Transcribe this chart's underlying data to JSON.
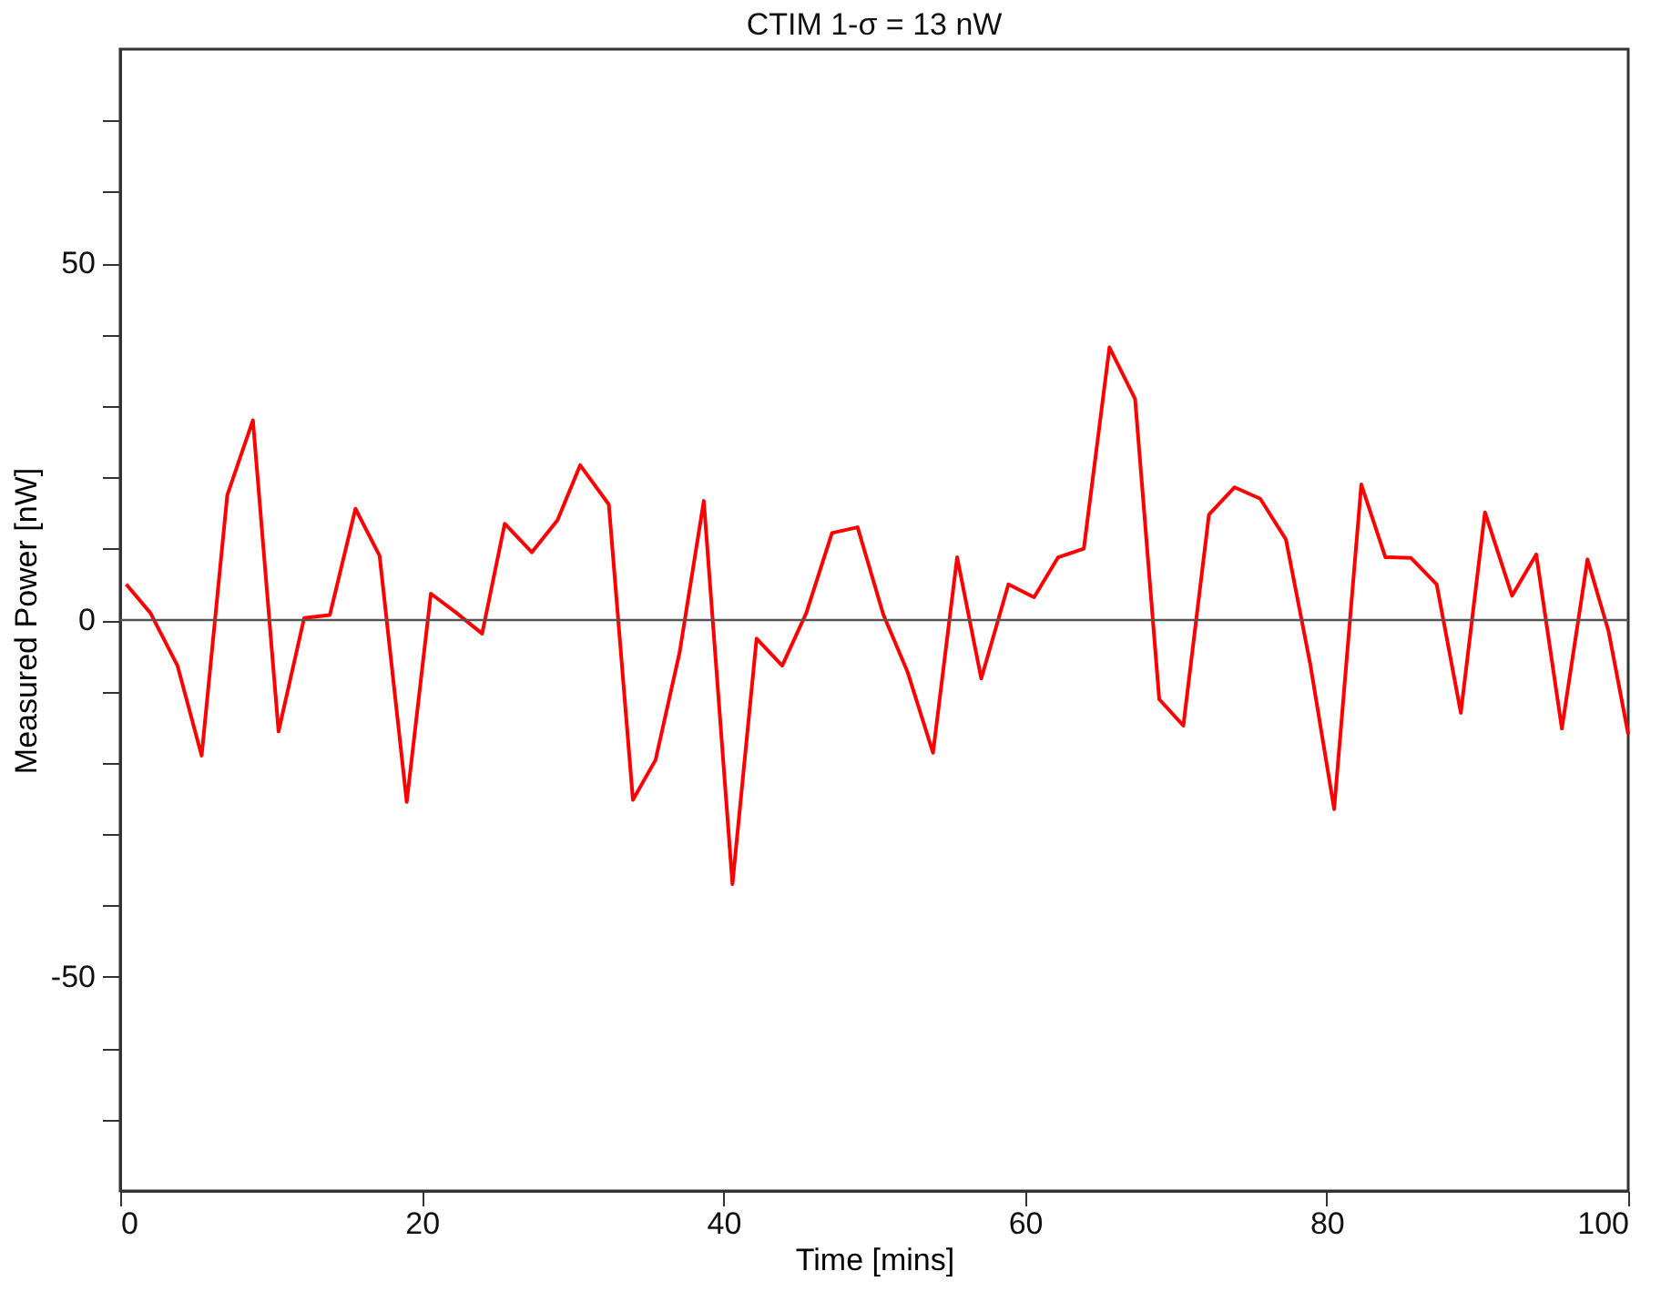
{
  "chart_data": {
    "type": "line",
    "title": "CTIM 1-σ = 13 nW",
    "xlabel": "Time [mins]",
    "ylabel": "Measured Power [nW]",
    "x": [
      0.4,
      2.0,
      3.8,
      5.4,
      7.1,
      8.8,
      10.5,
      12.2,
      13.9,
      15.6,
      17.2,
      19.0,
      20.6,
      22.3,
      24.0,
      25.5,
      27.3,
      29.0,
      30.5,
      32.4,
      34.0,
      35.5,
      37.1,
      38.7,
      40.6,
      42.2,
      43.9,
      45.5,
      47.2,
      48.9,
      50.6,
      52.2,
      53.9,
      55.5,
      57.1,
      58.9,
      60.6,
      62.2,
      63.9,
      65.6,
      67.3,
      68.9,
      70.5,
      72.2,
      73.9,
      75.6,
      77.3,
      78.9,
      80.5,
      82.3,
      83.9,
      85.6,
      87.3,
      88.9,
      90.5,
      92.3,
      93.9,
      95.6,
      97.3,
      98.7,
      100
    ],
    "series": [
      {
        "color": "#ff0000",
        "values": [
          5,
          1,
          -6.4,
          -19,
          17.5,
          28,
          -15.6,
          0.3,
          0.7,
          15.6,
          9,
          -25.5,
          3.7,
          1,
          -1.9,
          13.5,
          9.5,
          14,
          21.7,
          16.2,
          -25.2,
          -19.6,
          -4.5,
          16.7,
          -37,
          -2.6,
          -6.4,
          1,
          12.2,
          13,
          0.8,
          -7.2,
          -18.6,
          8.8,
          -8.2,
          5,
          3.2,
          8.8,
          10,
          38.2,
          31,
          -11.1,
          -14.8,
          14.8,
          18.6,
          17,
          11.3,
          -6,
          -26.5,
          19,
          8.8,
          8.7,
          5,
          -13,
          15.1,
          3.4,
          9.2,
          -15.2,
          8.5,
          -1.6,
          -16
        ]
      }
    ],
    "xlim": [
      0,
      100
    ],
    "xticks": [
      0,
      20,
      40,
      60,
      80,
      100
    ],
    "ylim": [
      -80,
      80
    ],
    "yticks": [
      {
        "value": -70,
        "label": null
      },
      {
        "value": -60,
        "label": null
      },
      -50,
      {
        "value": -40,
        "label": null
      },
      {
        "value": -30,
        "label": null
      },
      {
        "value": -20,
        "label": null
      },
      {
        "value": -10,
        "label": null
      },
      0,
      {
        "value": 10,
        "label": null
      },
      {
        "value": 20,
        "label": null
      },
      {
        "value": 30,
        "label": null
      },
      {
        "value": 40,
        "label": null
      },
      50,
      {
        "value": 60,
        "label": null
      },
      {
        "value": 70,
        "label": null
      }
    ],
    "ref_lines": [
      {
        "axis": "y",
        "value": 0,
        "color": "#555555"
      }
    ],
    "grid": false,
    "marker": "none",
    "line_style": "solid"
  }
}
